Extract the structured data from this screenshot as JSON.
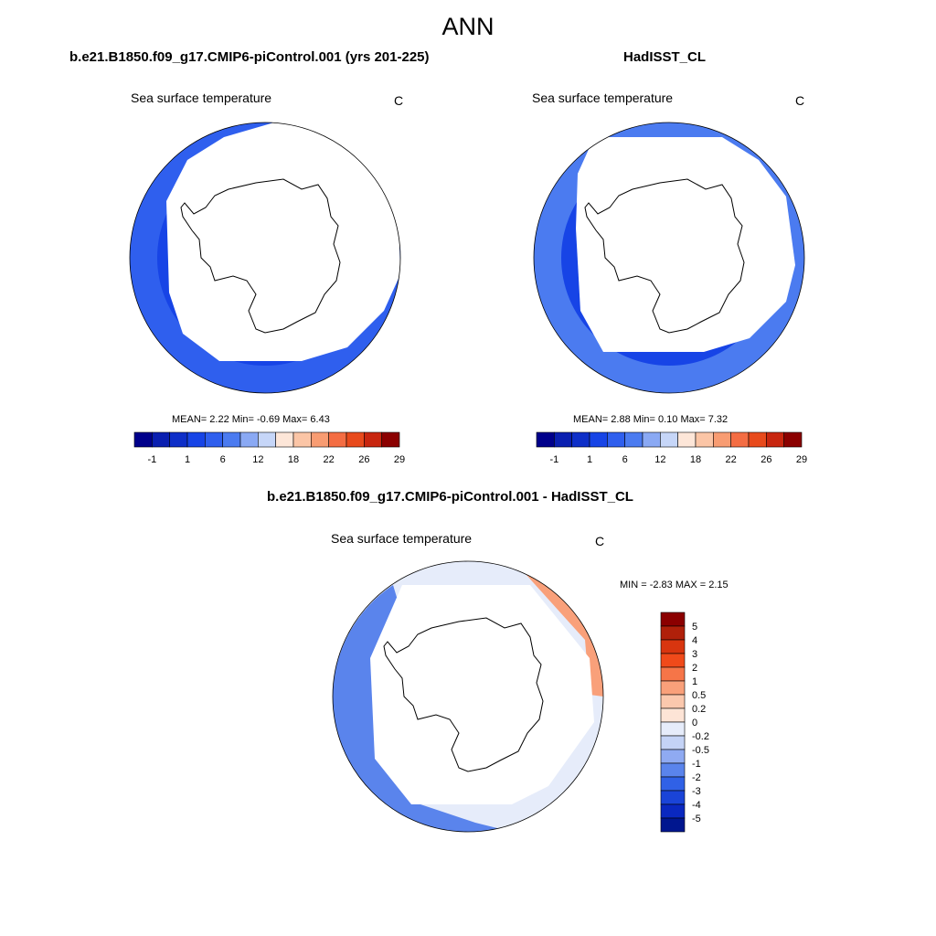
{
  "figure": {
    "title": "ANN",
    "panel_a": {
      "title": "b.e21.B1850.f09_g17.CMIP6-piControl.001 (yrs 201-225)",
      "variable": "Sea surface temperature",
      "units": "C",
      "mean_label": "MEAN=",
      "mean": "2.22",
      "min_label": "Min=",
      "min": "-0.69",
      "max_label": "Max=",
      "max": "6.43",
      "colorbar_ticks": [
        "-1",
        "1",
        "6",
        "12",
        "18",
        "22",
        "26",
        "29"
      ]
    },
    "panel_b": {
      "title": "HadISST_CL",
      "variable": "Sea surface temperature",
      "units": "C",
      "mean_label": "MEAN=",
      "mean": "2.88",
      "min_label": "Min=",
      "min": "0.10",
      "max_label": "Max=",
      "max": "7.32",
      "colorbar_ticks": [
        "-1",
        "1",
        "6",
        "12",
        "18",
        "22",
        "26",
        "29"
      ]
    },
    "panel_diff": {
      "title": "b.e21.B1850.f09_g17.CMIP6-piControl.001 - HadISST_CL",
      "variable": "Sea surface temperature",
      "units": "C",
      "minmax_text": "MIN =  -2.83 MAX =   2.15",
      "colorbar_ticks": [
        "5",
        "4",
        "3",
        "2",
        "1",
        "0.5",
        "0.2",
        "0",
        "-0.2",
        "-0.5",
        "-1",
        "-2",
        "-3",
        "-4",
        "-5"
      ]
    }
  },
  "colors": {
    "sst_scale": [
      "#00008b",
      "#0a1fb0",
      "#0e2fc8",
      "#1744e6",
      "#2f5fee",
      "#4b7bf0",
      "#8aa9f4",
      "#c6d6f8",
      "#fde6d8",
      "#fbc5a6",
      "#f89c72",
      "#f46d43",
      "#e84a1c",
      "#c8260f",
      "#8b0000"
    ],
    "diff_scale": [
      "#8b0000",
      "#b0200a",
      "#d8350f",
      "#f04a1a",
      "#f67548",
      "#f9a07a",
      "#fbc8ad",
      "#fde4d6",
      "#e6ecfa",
      "#c4d3f6",
      "#8faaf2",
      "#5a84ec",
      "#3061e6",
      "#1a44d8",
      "#0a28c0",
      "#00168f"
    ],
    "land": "#ffffff",
    "coast": "#000000"
  }
}
